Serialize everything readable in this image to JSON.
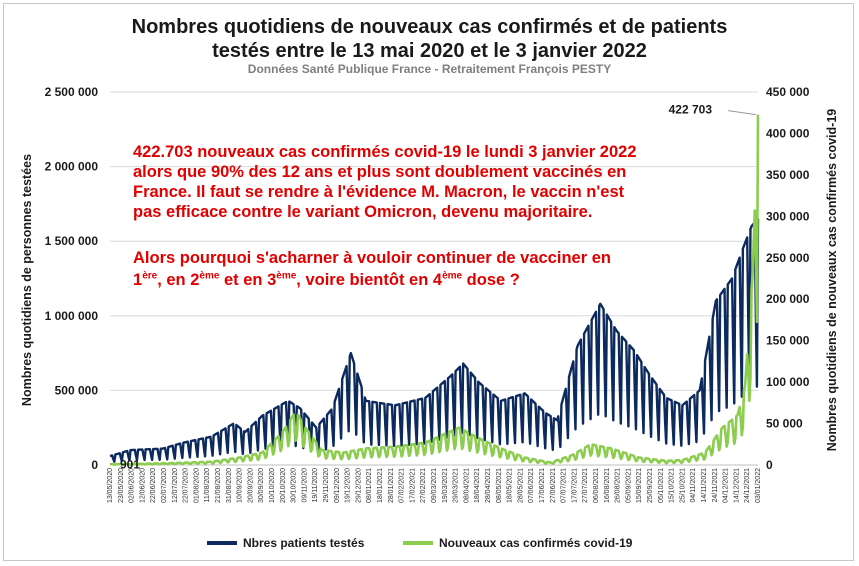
{
  "chart_data": {
    "type": "line",
    "title_line1": "Nombres quotidiens de nouveaux cas confirmés et de patients",
    "title_line2": "testés entre le 13 mai 2020 et le 3 janvier 2022",
    "subtitle": "Données Santé Publique France - Retraitement François PESTY",
    "ylabel_left": "Nombres quotidiens de personnes testées",
    "ylabel_right": "Nombres quotidiens de nouveaux cas confirmés covid-19",
    "ylim_left": [
      0,
      2500000
    ],
    "ylim_right": [
      0,
      450000
    ],
    "yticks_left": [
      "0",
      "500 000",
      "1 000 000",
      "1 500 000",
      "2 000 000",
      "2 500 000"
    ],
    "yticks_right": [
      "0",
      "50 000",
      "100 000",
      "150 000",
      "200 000",
      "250 000",
      "300 000",
      "350 000",
      "400 000",
      "450 000"
    ],
    "x_start": "2020-05-13",
    "x_end": "2022-01-03",
    "xtick_labels": [
      "13/05/2020",
      "23/05/2020",
      "02/06/2020",
      "12/06/2020",
      "22/06/2020",
      "02/07/2020",
      "12/07/2020",
      "22/07/2020",
      "01/08/2020",
      "11/08/2020",
      "21/08/2020",
      "31/08/2020",
      "10/09/2020",
      "20/09/2020",
      "30/09/2020",
      "10/10/2020",
      "20/10/2020",
      "30/10/2020",
      "09/11/2020",
      "19/11/2020",
      "29/11/2020",
      "09/12/2020",
      "19/12/2020",
      "29/12/2020",
      "08/01/2021",
      "18/01/2021",
      "28/01/2021",
      "07/02/2021",
      "17/02/2021",
      "27/02/2021",
      "09/03/2021",
      "19/03/2021",
      "29/03/2021",
      "08/04/2021",
      "18/04/2021",
      "28/04/2021",
      "08/05/2021",
      "18/05/2021",
      "28/05/2021",
      "07/06/2021",
      "17/06/2021",
      "27/06/2021",
      "07/07/2021",
      "17/07/2021",
      "27/07/2021",
      "06/08/2021",
      "16/08/2021",
      "26/08/2021",
      "05/09/2021",
      "15/09/2021",
      "25/09/2021",
      "05/10/2021",
      "15/10/2021",
      "25/10/2021",
      "04/11/2021",
      "14/11/2021",
      "24/11/2021",
      "04/12/2021",
      "14/12/2021",
      "24/12/2021",
      "03/01/2022"
    ],
    "data_labels": [
      {
        "series": "Nouveaux cas confirmés covid-19",
        "date": "2022-01-03",
        "text": "422 703"
      },
      {
        "series": "Nouveaux cas confirmés covid-19",
        "date": "2020-05-13",
        "text": "901"
      }
    ],
    "series": [
      {
        "name": "Nbres patients testés",
        "color": "#0d2a5e",
        "axis": "left",
        "points": [
          [
            "2020-05-13",
            60000
          ],
          [
            "2020-06-01",
            100000
          ],
          [
            "2020-07-01",
            110000
          ],
          [
            "2020-07-20",
            150000
          ],
          [
            "2020-08-15",
            190000
          ],
          [
            "2020-09-05",
            280000
          ],
          [
            "2020-09-15",
            220000
          ],
          [
            "2020-10-01",
            330000
          ],
          [
            "2020-10-25",
            430000
          ],
          [
            "2020-11-05",
            380000
          ],
          [
            "2020-11-20",
            250000
          ],
          [
            "2020-12-05",
            380000
          ],
          [
            "2020-12-22",
            750000
          ],
          [
            "2021-01-05",
            430000
          ],
          [
            "2021-02-01",
            400000
          ],
          [
            "2021-03-01",
            450000
          ],
          [
            "2021-03-25",
            600000
          ],
          [
            "2021-04-05",
            680000
          ],
          [
            "2021-04-20",
            550000
          ],
          [
            "2021-05-10",
            430000
          ],
          [
            "2021-06-01",
            480000
          ],
          [
            "2021-06-20",
            350000
          ],
          [
            "2021-07-01",
            300000
          ],
          [
            "2021-07-20",
            800000
          ],
          [
            "2021-08-10",
            1080000
          ],
          [
            "2021-08-25",
            900000
          ],
          [
            "2021-09-10",
            770000
          ],
          [
            "2021-09-25",
            600000
          ],
          [
            "2021-10-10",
            450000
          ],
          [
            "2021-10-25",
            400000
          ],
          [
            "2021-11-10",
            500000
          ],
          [
            "2021-11-25",
            1100000
          ],
          [
            "2021-12-10",
            1250000
          ],
          [
            "2021-12-20",
            1450000
          ],
          [
            "2021-12-28",
            1600000
          ],
          [
            "2022-01-03",
            1650000
          ]
        ]
      },
      {
        "name": "Nouveaux cas confirmés covid-19",
        "color": "#8ccc4e",
        "axis": "right",
        "points": [
          [
            "2020-05-13",
            901
          ],
          [
            "2020-06-15",
            1500
          ],
          [
            "2020-07-15",
            2500
          ],
          [
            "2020-08-15",
            4000
          ],
          [
            "2020-09-10",
            9000
          ],
          [
            "2020-10-01",
            15000
          ],
          [
            "2020-10-20",
            40000
          ],
          [
            "2020-11-01",
            65000
          ],
          [
            "2020-11-10",
            45000
          ],
          [
            "2020-11-25",
            18000
          ],
          [
            "2020-12-15",
            15000
          ],
          [
            "2021-01-05",
            20000
          ],
          [
            "2021-02-01",
            22000
          ],
          [
            "2021-03-01",
            27000
          ],
          [
            "2021-04-01",
            45000
          ],
          [
            "2021-04-20",
            32000
          ],
          [
            "2021-05-10",
            20000
          ],
          [
            "2021-06-01",
            9000
          ],
          [
            "2021-06-25",
            3000
          ],
          [
            "2021-07-15",
            12000
          ],
          [
            "2021-08-01",
            25000
          ],
          [
            "2021-08-20",
            20000
          ],
          [
            "2021-09-15",
            9000
          ],
          [
            "2021-10-10",
            5000
          ],
          [
            "2021-10-25",
            6000
          ],
          [
            "2021-11-15",
            15000
          ],
          [
            "2021-12-01",
            45000
          ],
          [
            "2021-12-15",
            60000
          ],
          [
            "2021-12-22",
            95000
          ],
          [
            "2021-12-29",
            230000
          ],
          [
            "2022-01-03",
            422703
          ]
        ]
      }
    ]
  },
  "annotation": {
    "line1": "422.703 nouveaux cas confirmés covid-19 le lundi 3 janvier 2022",
    "line2": "alors que 90% des 12 ans et plus sont doublement vaccinés en",
    "line3": "France. Il faut se rendre à l'évidence M. Macron, le vaccin n'est",
    "line4": "pas efficace contre le variant Omicron, devenu majoritaire.",
    "line5": "Alors pourquoi s'acharner à vouloir continuer de vacciner en",
    "line6_a": "1",
    "line6_a_sup": "ère",
    "line6_b": ", en 2",
    "line6_b_sup": "ème",
    "line6_c": " et en 3",
    "line6_c_sup": "ème",
    "line6_d": ", voire bientôt en 4",
    "line6_d_sup": "ème",
    "line6_e": " dose ?"
  }
}
